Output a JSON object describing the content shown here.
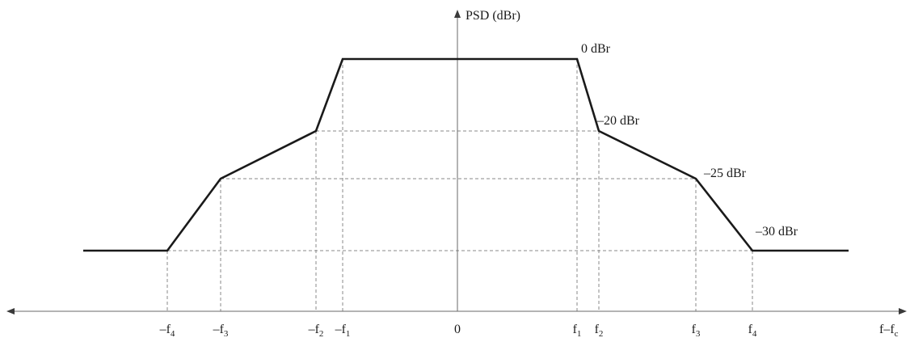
{
  "chart_data": {
    "type": "line",
    "title": "",
    "ylabel": "PSD (dBr)",
    "xlabel": "f–f",
    "xlabel_sub": "c",
    "x_ticks": [
      {
        "text": "–f",
        "sub": "4",
        "x": -4
      },
      {
        "text": "–f",
        "sub": "3",
        "x": -3
      },
      {
        "text": "–f",
        "sub": "2",
        "x": -2
      },
      {
        "text": "–f",
        "sub": "1",
        "x": -1
      },
      {
        "text": "0",
        "sub": "",
        "x": 0
      },
      {
        "text": "f",
        "sub": "1",
        "x": 1
      },
      {
        "text": "f",
        "sub": "2",
        "x": 2
      },
      {
        "text": "f",
        "sub": "3",
        "x": 3
      },
      {
        "text": "f",
        "sub": "4",
        "x": 4
      }
    ],
    "series": [
      {
        "points": [
          {
            "x": -5,
            "y": -30
          },
          {
            "x": -4,
            "y": -30
          },
          {
            "x": -3,
            "y": -25
          },
          {
            "x": -2,
            "y": -20
          },
          {
            "x": -1,
            "y": 0
          },
          {
            "x": 1,
            "y": 0
          },
          {
            "x": 2,
            "y": -20
          },
          {
            "x": 3,
            "y": -25
          },
          {
            "x": 4,
            "y": -30
          },
          {
            "x": 5,
            "y": -30
          }
        ]
      }
    ],
    "level_labels": [
      {
        "text": "0 dBr",
        "x": 1,
        "y": 0
      },
      {
        "text": "–20 dBr",
        "x": 2,
        "y": -20
      },
      {
        "text": "–25 dBr",
        "x": 3,
        "y": -25
      },
      {
        "text": "–30 dBr",
        "x": 4,
        "y": -30
      }
    ],
    "grid": false
  }
}
